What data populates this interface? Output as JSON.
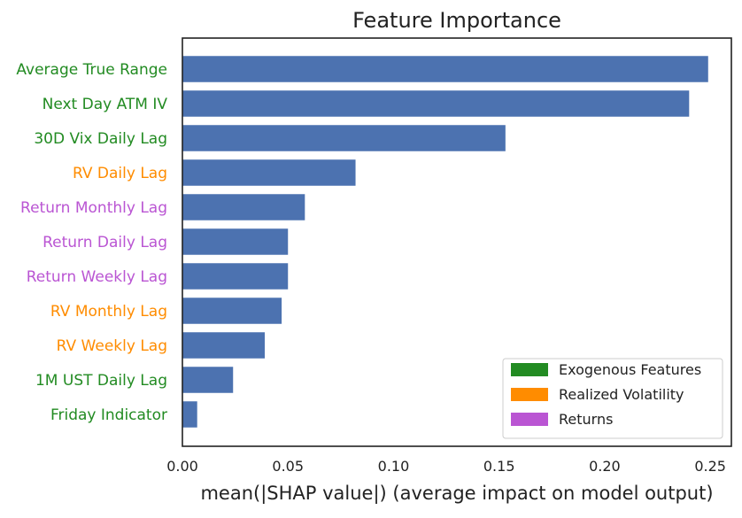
{
  "chart_data": {
    "type": "bar",
    "orientation": "horizontal",
    "title": "Feature Importance",
    "xlabel": "mean(|SHAP value|) (average impact on model output)",
    "ylabel": "",
    "xlim": [
      0,
      0.26
    ],
    "xticks": [
      "0.00",
      "0.05",
      "0.10",
      "0.15",
      "0.20",
      "0.25"
    ],
    "xtick_values": [
      0,
      0.05,
      0.1,
      0.15,
      0.2,
      0.25
    ],
    "grid": false,
    "legend_position": "bottom-right",
    "bar_color": "#4c72b0",
    "groups": [
      {
        "name": "Exogenous Features",
        "color": "#228b22"
      },
      {
        "name": "Realized Volatility",
        "color": "#ff8c00"
      },
      {
        "name": "Returns",
        "color": "#ba55d3"
      }
    ],
    "categories": [
      "Average True Range",
      "Next Day ATM IV",
      "30D Vix Daily Lag",
      "RV Daily Lag",
      "Return Monthly Lag",
      "Return Daily Lag",
      "Return Weekly Lag",
      "RV Monthly Lag",
      "RV Weekly Lag",
      "1M UST Daily Lag",
      "Friday Indicator"
    ],
    "category_groups": [
      "Exogenous Features",
      "Exogenous Features",
      "Exogenous Features",
      "Realized Volatility",
      "Returns",
      "Returns",
      "Returns",
      "Realized Volatility",
      "Realized Volatility",
      "Exogenous Features",
      "Exogenous Features"
    ],
    "values": [
      0.249,
      0.24,
      0.153,
      0.082,
      0.058,
      0.05,
      0.05,
      0.047,
      0.039,
      0.024,
      0.007
    ]
  }
}
